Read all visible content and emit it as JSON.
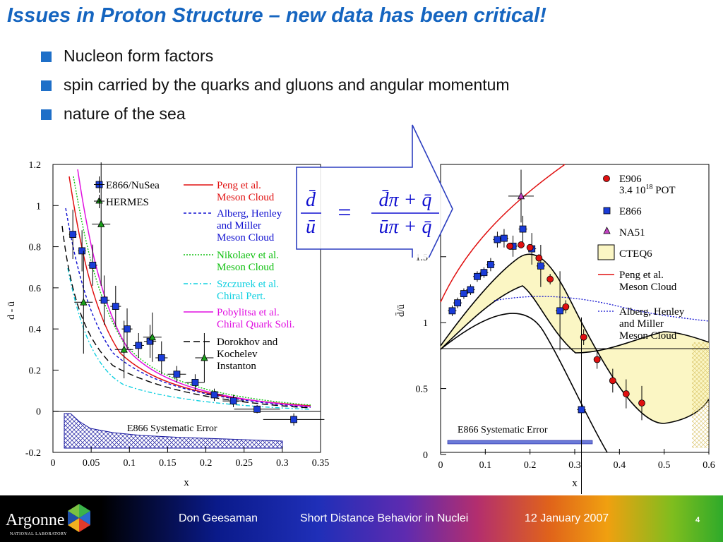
{
  "slide": {
    "title": "Issues in Proton Structure – new data has been critical!",
    "bullets": [
      "Nucleon form factors",
      "spin carried by the quarks and gluons and angular momentum",
      "nature of the sea"
    ]
  },
  "equation": {
    "lhs_num": "d̄",
    "lhs_den": "ū",
    "equals": "=",
    "rhs_num": "d̄π + q̄",
    "rhs_den": "ūπ + q̄"
  },
  "left_plot": {
    "ylabel": "d - ū",
    "xlabel": "x",
    "yticks": [
      "-0.2",
      "0",
      "0.2",
      "0.4",
      "0.6",
      "0.8",
      "1",
      "1.2"
    ],
    "xticks": [
      "0",
      "0.05",
      "0.1",
      "0.15",
      "0.2",
      "0.25",
      "0.3",
      "0.35"
    ],
    "sys_label": "E866 Systematic Error",
    "legend_data": [
      "E866/NuSea",
      "HERMES"
    ],
    "legend_models": [
      {
        "text": "Peng et al.",
        "text2": "Meson Cloud",
        "color": "#e01010"
      },
      {
        "text": "Alberg, Henley",
        "text2": "and Miller",
        "text3": "Meson Cloud",
        "color": "#1010d0"
      },
      {
        "text": "Nikolaev et al.",
        "text2": "Meson Cloud",
        "color": "#10c010"
      },
      {
        "text": "Szczurek et al.",
        "text2": "Chiral Pert.",
        "color": "#10d0e0"
      },
      {
        "text": "Pobylitsa et al.",
        "text2": "Chiral Quark Soli.",
        "color": "#e010e0"
      },
      {
        "text": "Dorokhov and",
        "text2": "Kochelev",
        "text3": "Instanton",
        "color": "#000000"
      }
    ]
  },
  "right_plot": {
    "ylabel": "d̄/ū",
    "xlabel": "x",
    "yticks": [
      "0",
      "0.5",
      "1",
      "1.5"
    ],
    "xticks": [
      "0",
      "0.1",
      "0.2",
      "0.3",
      "0.4",
      "0.5",
      "0.6"
    ],
    "sys_label": "E866 Systematic Error",
    "legend": [
      {
        "text": "E906",
        "sub": "3.4 10",
        "sup": "18",
        "tail": " POT"
      },
      {
        "text": "E866"
      },
      {
        "text": "NA51"
      },
      {
        "text": "CTEQ6"
      },
      {
        "text": "Peng et al.",
        "text2": "Meson Cloud"
      },
      {
        "text": "Alberg, Henley",
        "text2": "and Miller",
        "text3": "Meson Cloud"
      }
    ]
  },
  "chart_data": [
    {
      "type": "scatter",
      "xlabel": "x",
      "ylabel": "d - ū",
      "xlim": [
        0,
        0.35
      ],
      "ylim": [
        -0.2,
        1.2
      ],
      "series": [
        {
          "name": "E866/NuSea",
          "x": [
            0.026,
            0.038,
            0.052,
            0.067,
            0.082,
            0.097,
            0.112,
            0.127,
            0.142,
            0.162,
            0.186,
            0.211,
            0.236,
            0.267,
            0.315
          ],
          "y": [
            0.86,
            0.78,
            0.71,
            0.54,
            0.51,
            0.4,
            0.32,
            0.34,
            0.26,
            0.18,
            0.14,
            0.08,
            0.05,
            0.01,
            -0.04
          ]
        },
        {
          "name": "HERMES",
          "x": [
            0.04,
            0.063,
            0.093,
            0.13,
            0.198
          ],
          "y": [
            0.53,
            0.91,
            0.3,
            0.36,
            0.26
          ]
        }
      ]
    },
    {
      "type": "scatter",
      "xlabel": "x",
      "ylabel": "d̄/ū",
      "xlim": [
        0,
        0.6
      ],
      "ylim": [
        0,
        2.2
      ],
      "series": [
        {
          "name": "E906",
          "x": [
            0.155,
            0.18,
            0.2,
            0.22,
            0.245,
            0.28,
            0.32,
            0.35,
            0.385,
            0.415,
            0.45
          ],
          "y": [
            1.58,
            1.59,
            1.57,
            1.49,
            1.33,
            1.12,
            0.89,
            0.72,
            0.56,
            0.46,
            0.39
          ]
        },
        {
          "name": "E866",
          "x": [
            0.026,
            0.038,
            0.052,
            0.067,
            0.082,
            0.097,
            0.112,
            0.127,
            0.142,
            0.162,
            0.184,
            0.204,
            0.224,
            0.267,
            0.315
          ],
          "y": [
            1.09,
            1.15,
            1.22,
            1.25,
            1.35,
            1.38,
            1.44,
            1.63,
            1.64,
            1.58,
            1.71,
            1.56,
            1.43,
            1.09,
            0.34
          ]
        },
        {
          "name": "NA51",
          "x": [
            0.18
          ],
          "y": [
            1.96
          ]
        }
      ]
    }
  ],
  "footer": {
    "author": "Don Geesaman",
    "talk": "Short Distance Behavior in Nuclei",
    "date": "12 January 2007",
    "page": "4",
    "logo_text": "Argonne",
    "logo_sub": "NATIONAL LABORATORY"
  }
}
